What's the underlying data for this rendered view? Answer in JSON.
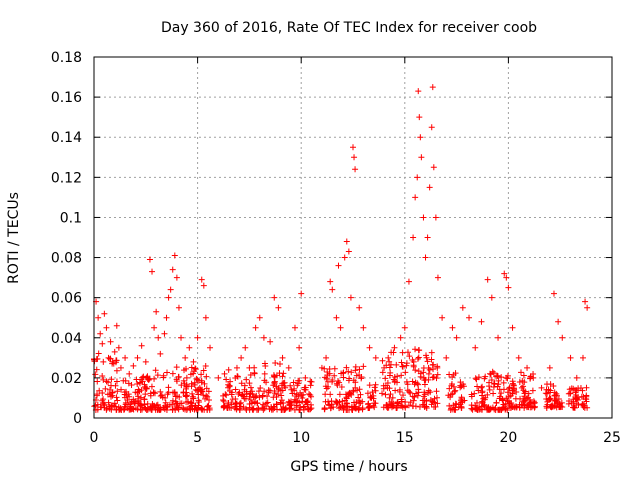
{
  "chart_data": {
    "type": "scatter",
    "title": "Day 360 of 2016, Rate Of TEC Index for receiver coob",
    "xlabel": "GPS time / hours",
    "ylabel": "ROTI / TECUs",
    "xlim": [
      0,
      25
    ],
    "ylim": [
      0,
      0.18
    ],
    "xticks": [
      "0",
      "5",
      "10",
      "15",
      "20",
      "25"
    ],
    "yticks": [
      "0",
      "0.02",
      "0.04",
      "0.06",
      "0.08",
      "0.1",
      "0.12",
      "0.14",
      "0.16",
      "0.18"
    ],
    "grid": true,
    "marker": "+",
    "color": "#ff0000",
    "series": [
      {
        "points": [
          [
            0.1,
            0.058
          ],
          [
            0.2,
            0.05
          ],
          [
            0.3,
            0.042
          ],
          [
            0.4,
            0.037
          ],
          [
            0.5,
            0.052
          ],
          [
            0.6,
            0.045
          ],
          [
            0.7,
            0.03
          ],
          [
            0.8,
            0.038
          ],
          [
            0.9,
            0.028
          ],
          [
            1.0,
            0.033
          ],
          [
            1.1,
            0.046
          ],
          [
            1.2,
            0.035
          ],
          [
            1.3,
            0.025
          ],
          [
            1.5,
            0.03
          ],
          [
            1.7,
            0.022
          ],
          [
            1.9,
            0.026
          ],
          [
            2.1,
            0.03
          ],
          [
            2.3,
            0.036
          ],
          [
            2.5,
            0.028
          ],
          [
            2.7,
            0.079
          ],
          [
            2.8,
            0.073
          ],
          [
            2.9,
            0.045
          ],
          [
            3.0,
            0.053
          ],
          [
            3.1,
            0.04
          ],
          [
            3.2,
            0.032
          ],
          [
            3.4,
            0.042
          ],
          [
            3.5,
            0.05
          ],
          [
            3.6,
            0.06
          ],
          [
            3.7,
            0.064
          ],
          [
            3.8,
            0.074
          ],
          [
            3.9,
            0.081
          ],
          [
            4.0,
            0.07
          ],
          [
            4.1,
            0.055
          ],
          [
            4.2,
            0.04
          ],
          [
            4.4,
            0.03
          ],
          [
            4.6,
            0.035
          ],
          [
            4.8,
            0.028
          ],
          [
            5.0,
            0.04
          ],
          [
            5.2,
            0.069
          ],
          [
            5.3,
            0.066
          ],
          [
            5.4,
            0.05
          ],
          [
            5.6,
            0.035
          ],
          [
            6.0,
            0.02
          ],
          [
            6.3,
            0.022
          ],
          [
            6.5,
            0.024
          ],
          [
            6.9,
            0.025
          ],
          [
            7.1,
            0.03
          ],
          [
            7.3,
            0.035
          ],
          [
            7.5,
            0.025
          ],
          [
            7.8,
            0.045
          ],
          [
            8.0,
            0.05
          ],
          [
            8.2,
            0.04
          ],
          [
            8.5,
            0.038
          ],
          [
            8.7,
            0.06
          ],
          [
            8.9,
            0.055
          ],
          [
            9.1,
            0.03
          ],
          [
            9.4,
            0.025
          ],
          [
            9.7,
            0.045
          ],
          [
            9.9,
            0.035
          ],
          [
            10.0,
            0.062
          ],
          [
            10.2,
            0.02
          ],
          [
            10.5,
            0.018
          ],
          [
            11.0,
            0.025
          ],
          [
            11.2,
            0.03
          ],
          [
            11.4,
            0.068
          ],
          [
            11.5,
            0.064
          ],
          [
            11.7,
            0.05
          ],
          [
            11.8,
            0.076
          ],
          [
            11.9,
            0.045
          ],
          [
            12.1,
            0.08
          ],
          [
            12.2,
            0.088
          ],
          [
            12.3,
            0.083
          ],
          [
            12.4,
            0.06
          ],
          [
            12.5,
            0.135
          ],
          [
            12.55,
            0.13
          ],
          [
            12.6,
            0.124
          ],
          [
            12.8,
            0.055
          ],
          [
            13.0,
            0.045
          ],
          [
            13.3,
            0.035
          ],
          [
            13.6,
            0.03
          ],
          [
            14.0,
            0.025
          ],
          [
            14.2,
            0.03
          ],
          [
            14.5,
            0.035
          ],
          [
            14.8,
            0.04
          ],
          [
            15.0,
            0.045
          ],
          [
            15.2,
            0.068
          ],
          [
            15.4,
            0.09
          ],
          [
            15.5,
            0.11
          ],
          [
            15.6,
            0.12
          ],
          [
            15.65,
            0.163
          ],
          [
            15.7,
            0.15
          ],
          [
            15.75,
            0.14
          ],
          [
            15.8,
            0.13
          ],
          [
            15.9,
            0.1
          ],
          [
            16.0,
            0.08
          ],
          [
            16.1,
            0.09
          ],
          [
            16.2,
            0.115
          ],
          [
            16.3,
            0.145
          ],
          [
            16.35,
            0.165
          ],
          [
            16.4,
            0.125
          ],
          [
            16.5,
            0.1
          ],
          [
            16.6,
            0.07
          ],
          [
            16.8,
            0.05
          ],
          [
            17.0,
            0.03
          ],
          [
            17.3,
            0.045
          ],
          [
            17.5,
            0.04
          ],
          [
            17.8,
            0.055
          ],
          [
            18.1,
            0.05
          ],
          [
            18.4,
            0.035
          ],
          [
            18.7,
            0.048
          ],
          [
            19.0,
            0.069
          ],
          [
            19.2,
            0.06
          ],
          [
            19.5,
            0.04
          ],
          [
            19.8,
            0.072
          ],
          [
            19.9,
            0.07
          ],
          [
            20.0,
            0.065
          ],
          [
            20.2,
            0.045
          ],
          [
            20.5,
            0.03
          ],
          [
            20.9,
            0.025
          ],
          [
            21.2,
            0.02
          ],
          [
            21.6,
            0.015
          ],
          [
            22.0,
            0.025
          ],
          [
            22.2,
            0.062
          ],
          [
            22.4,
            0.048
          ],
          [
            22.6,
            0.04
          ],
          [
            23.0,
            0.03
          ],
          [
            23.3,
            0.02
          ],
          [
            23.6,
            0.03
          ],
          [
            23.7,
            0.058
          ],
          [
            23.8,
            0.055
          ]
        ],
        "bands": [
          [
            0.0,
            1.2,
            0.03,
            0.004
          ],
          [
            1.2,
            2.6,
            0.017,
            0.004
          ],
          [
            2.6,
            5.6,
            0.022,
            0.004
          ],
          [
            6.2,
            6.7,
            0.015,
            0.005
          ],
          [
            6.8,
            7.4,
            0.018,
            0.004
          ],
          [
            7.5,
            9.3,
            0.025,
            0.004
          ],
          [
            9.4,
            10.5,
            0.015,
            0.004
          ],
          [
            11.1,
            13.0,
            0.022,
            0.004
          ],
          [
            13.2,
            13.6,
            0.012,
            0.005
          ],
          [
            13.9,
            16.4,
            0.03,
            0.005
          ],
          [
            16.4,
            16.6,
            0.025,
            0.005
          ],
          [
            17.1,
            17.5,
            0.02,
            0.004
          ],
          [
            17.6,
            17.9,
            0.018,
            0.005
          ],
          [
            18.2,
            20.0,
            0.02,
            0.004
          ],
          [
            20.0,
            21.3,
            0.018,
            0.005
          ],
          [
            21.8,
            22.6,
            0.012,
            0.005
          ],
          [
            22.9,
            23.4,
            0.01,
            0.005
          ],
          [
            23.5,
            23.8,
            0.012,
            0.005
          ]
        ]
      }
    ]
  }
}
